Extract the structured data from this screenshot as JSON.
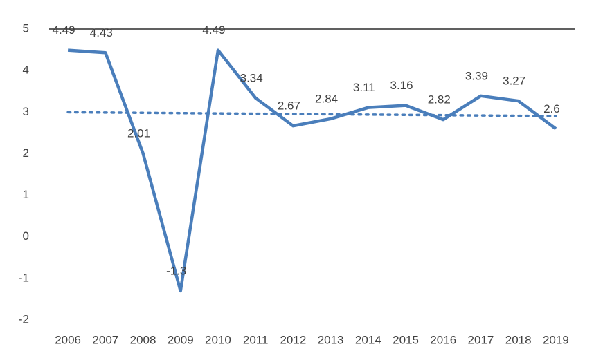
{
  "chart_data": {
    "type": "line",
    "categories": [
      "2006",
      "2007",
      "2008",
      "2009",
      "2010",
      "2011",
      "2012",
      "2013",
      "2014",
      "2015",
      "2016",
      "2017",
      "2018",
      "2019"
    ],
    "values": [
      4.49,
      4.43,
      2.01,
      -1.3,
      4.49,
      3.34,
      2.67,
      2.84,
      3.11,
      3.16,
      2.82,
      3.39,
      3.27,
      2.6
    ],
    "color": "#4a7ebb",
    "ylim": [
      -2,
      5
    ],
    "yticks": [
      -2,
      -1,
      0,
      1,
      2,
      3,
      4,
      5
    ],
    "grid": false,
    "trendline": true,
    "data_labels": true
  }
}
